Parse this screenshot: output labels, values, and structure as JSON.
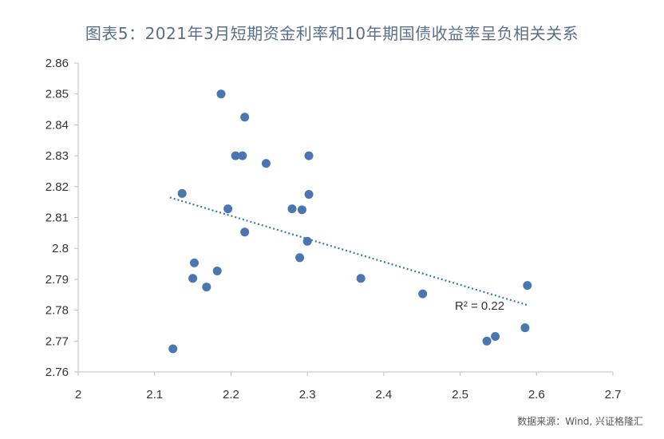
{
  "chart_data": {
    "type": "scatter",
    "title": "图表5：2021年3月短期资金利率和10年期国债收益率呈负相关关系",
    "xlabel": "",
    "ylabel": "",
    "xlim": [
      2,
      2.7
    ],
    "ylim": [
      2.76,
      2.86
    ],
    "xticks": [
      "2",
      "2.1",
      "2.2",
      "2.3",
      "2.4",
      "2.5",
      "2.6",
      "2.7"
    ],
    "yticks": [
      "2.76",
      "2.77",
      "2.78",
      "2.79",
      "2.8",
      "2.81",
      "2.82",
      "2.83",
      "2.84",
      "2.85",
      "2.86"
    ],
    "grid": false,
    "points": [
      {
        "x": 2.124,
        "y": 2.7675
      },
      {
        "x": 2.136,
        "y": 2.8178
      },
      {
        "x": 2.15,
        "y": 2.7903
      },
      {
        "x": 2.152,
        "y": 2.7953
      },
      {
        "x": 2.168,
        "y": 2.7875
      },
      {
        "x": 2.182,
        "y": 2.7927
      },
      {
        "x": 2.187,
        "y": 2.85
      },
      {
        "x": 2.196,
        "y": 2.8128
      },
      {
        "x": 2.206,
        "y": 2.83
      },
      {
        "x": 2.215,
        "y": 2.83
      },
      {
        "x": 2.218,
        "y": 2.8425
      },
      {
        "x": 2.218,
        "y": 2.8053
      },
      {
        "x": 2.246,
        "y": 2.8275
      },
      {
        "x": 2.28,
        "y": 2.8128
      },
      {
        "x": 2.29,
        "y": 2.797
      },
      {
        "x": 2.293,
        "y": 2.8125
      },
      {
        "x": 2.3,
        "y": 2.8023
      },
      {
        "x": 2.302,
        "y": 2.83
      },
      {
        "x": 2.302,
        "y": 2.8175
      },
      {
        "x": 2.37,
        "y": 2.7903
      },
      {
        "x": 2.451,
        "y": 2.7853
      },
      {
        "x": 2.535,
        "y": 2.77
      },
      {
        "x": 2.546,
        "y": 2.7715
      },
      {
        "x": 2.585,
        "y": 2.7743
      },
      {
        "x": 2.588,
        "y": 2.788
      }
    ],
    "trendline": {
      "x": [
        2.12,
        2.59
      ],
      "y": [
        2.8165,
        2.7815
      ]
    },
    "r2_label": "R² = 0.22",
    "colors": {
      "point": "#4a76b1",
      "trend": "#2e7f9a",
      "axis": "#bfbfbf"
    }
  },
  "source": "数据来源：Wind, 兴证格隆汇"
}
